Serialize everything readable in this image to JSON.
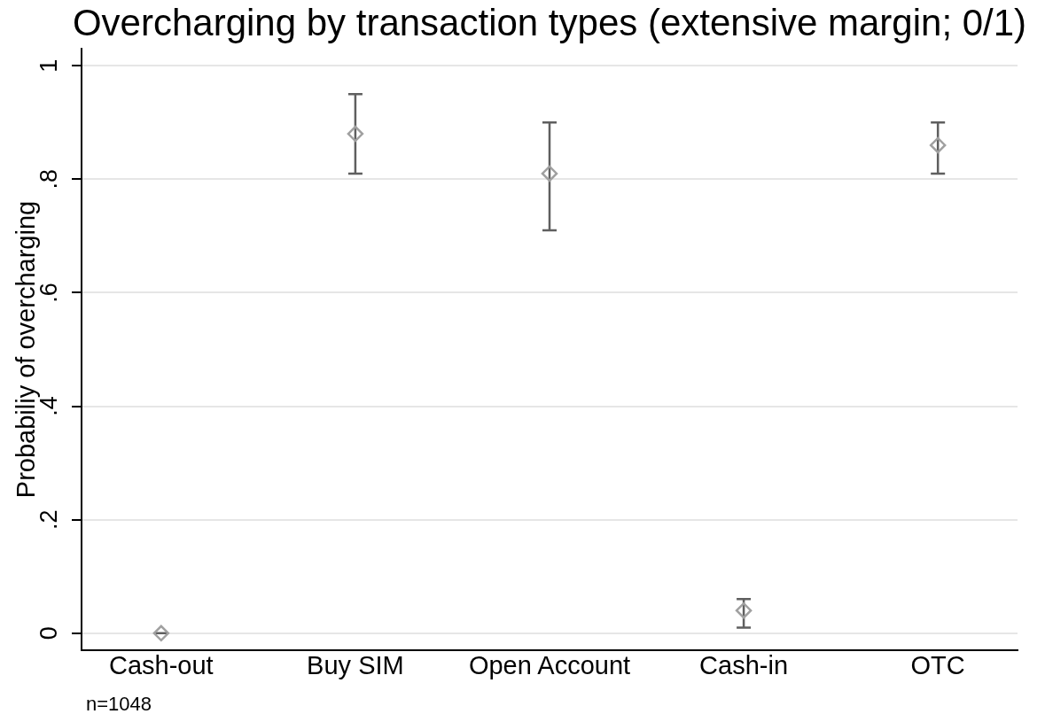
{
  "chart_data": {
    "type": "scatter",
    "title": "Overcharging by transaction types (extensive margin; 0/1)",
    "ylabel": "Probabiliy of overcharging",
    "categories": [
      "Cash-out",
      "Buy SIM",
      "Open Account",
      "Cash-in",
      "OTC"
    ],
    "values": [
      0,
      0.88,
      0.81,
      0.04,
      0.86
    ],
    "errors": [
      [
        0,
        0
      ],
      [
        0.81,
        0.95
      ],
      [
        0.71,
        0.9
      ],
      [
        0.01,
        0.06
      ],
      [
        0.81,
        0.9
      ]
    ],
    "color": "#a0a0a0",
    "marker": "diamond",
    "ylim": [
      -0.03,
      1.03
    ],
    "yticks": [
      0,
      {
        "value": 0.2,
        "label": ".2"
      },
      {
        "value": 0.4,
        "label": ".4"
      },
      {
        "value": 0.6,
        "label": ".6"
      },
      {
        "value": 0.8,
        "label": ".8"
      },
      1
    ],
    "grid": "y",
    "annotations": [
      "n=1048"
    ]
  }
}
